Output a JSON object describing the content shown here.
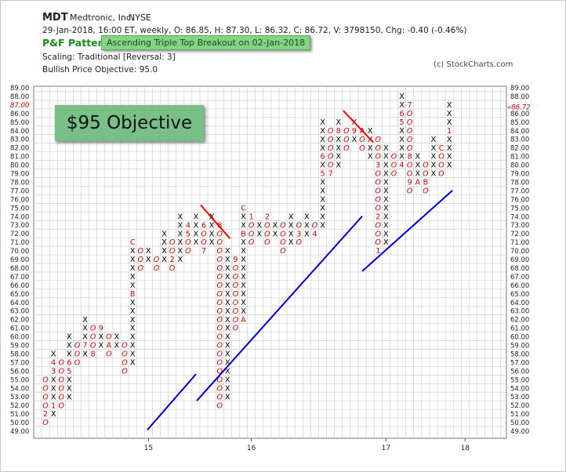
{
  "header": {
    "symbol": "MDT",
    "company": "Medtronic, Inc.",
    "exchange": "NYSE",
    "ohlc": "29-Jan-2018, 16:00 ET, weekly, O: 86.85, H: 87.30, L: 86.32, C: 86.72, V: 3798150, Chg: -0.40 (-0.46%)",
    "pnf_label": "P&F Pattern",
    "pattern": "Ascending Triple Top Breakout on 02-Jan-2018",
    "scaling": "Scaling: Traditional [Reversal: 3]",
    "objective": "Bullish Price Objective: 95.0",
    "copyright": "(c) StockCharts.com"
  },
  "annotation": "$95 Objective",
  "colors": {
    "x": "#000000",
    "o": "#cc0000",
    "trend": "#0000cc",
    "resistance": "#ff0000",
    "grid": "#c8c8c8"
  },
  "chart_data": {
    "type": "point-and-figure",
    "box_size": 1,
    "reversal": 3,
    "ylim": [
      49,
      89
    ],
    "last_price": 86.72,
    "last_price_label": "86.72",
    "x_ticks": [
      {
        "label": "15",
        "col": 13
      },
      {
        "label": "16",
        "col": 26
      },
      {
        "label": "17",
        "col": 43
      },
      {
        "label": "18",
        "col": 53
      }
    ],
    "columns": [
      {
        "type": "O",
        "high": 55,
        "low": 50,
        "marks": {
          "51": "2"
        }
      },
      {
        "type": "X",
        "high": 58,
        "low": 51,
        "marks": {
          "52": "1",
          "56": "3",
          "57": "4"
        }
      },
      {
        "type": "O",
        "high": 57,
        "low": 52,
        "marks": {}
      },
      {
        "type": "X",
        "high": 60,
        "low": 53,
        "marks": {
          "56": "5",
          "57": "6"
        }
      },
      {
        "type": "O",
        "high": 59,
        "low": 57,
        "marks": {}
      },
      {
        "type": "X",
        "high": 62,
        "low": 58,
        "marks": {
          "59": "7"
        }
      },
      {
        "type": "O",
        "high": 61,
        "low": 58,
        "marks": {
          "58": "8"
        }
      },
      {
        "type": "X",
        "high": 61,
        "low": 59,
        "marks": {
          "61": "9"
        }
      },
      {
        "type": "O",
        "high": 60,
        "low": 58,
        "marks": {
          "59": "A"
        }
      },
      {
        "type": "X",
        "high": 60,
        "low": 59,
        "marks": {}
      },
      {
        "type": "O",
        "high": 59,
        "low": 56,
        "marks": {}
      },
      {
        "type": "X",
        "high": 71,
        "low": 57,
        "marks": {
          "65": "B",
          "71": "C"
        }
      },
      {
        "type": "O",
        "high": 70,
        "low": 68,
        "marks": {}
      },
      {
        "type": "X",
        "high": 70,
        "low": 69,
        "marks": {}
      },
      {
        "type": "O",
        "high": 69,
        "low": 68,
        "marks": {
          "70": "1"
        }
      },
      {
        "type": "X",
        "high": 72,
        "low": 69,
        "marks": {}
      },
      {
        "type": "O",
        "high": 71,
        "low": 68,
        "marks": {
          "69": "2"
        }
      },
      {
        "type": "X",
        "high": 74,
        "low": 69,
        "marks": {}
      },
      {
        "type": "O",
        "high": 73,
        "low": 70,
        "marks": {
          "73": "4",
          "72": "5"
        }
      },
      {
        "type": "X",
        "high": 74,
        "low": 71,
        "marks": {}
      },
      {
        "type": "O",
        "high": 73,
        "low": 70,
        "marks": {
          "73": "6",
          "70": "7"
        }
      },
      {
        "type": "X",
        "high": 74,
        "low": 71,
        "marks": {}
      },
      {
        "type": "O",
        "high": 73,
        "low": 52,
        "marks": {
          "73": "8"
        }
      },
      {
        "type": "X",
        "high": 70,
        "low": 53,
        "marks": {}
      },
      {
        "type": "O",
        "high": 69,
        "low": 61,
        "marks": {
          "69": "9"
        }
      },
      {
        "type": "X",
        "high": 75,
        "low": 62,
        "marks": {
          "62": "A",
          "72": "B",
          "75": "C"
        }
      },
      {
        "type": "O",
        "high": 74,
        "low": 71,
        "marks": {
          "74": "1"
        }
      },
      {
        "type": "X",
        "high": 73,
        "low": 72,
        "marks": {}
      },
      {
        "type": "O",
        "high": 74,
        "low": 71,
        "marks": {
          "74": "2"
        }
      },
      {
        "type": "X",
        "high": 73,
        "low": 72,
        "marks": {}
      },
      {
        "type": "O",
        "high": 73,
        "low": 70,
        "marks": {}
      },
      {
        "type": "X",
        "high": 74,
        "low": 71,
        "marks": {}
      },
      {
        "type": "O",
        "high": 73,
        "low": 71,
        "marks": {
          "72": "3"
        }
      },
      {
        "type": "X",
        "high": 74,
        "low": 72,
        "marks": {}
      },
      {
        "type": "O",
        "high": 73,
        "low": 72,
        "marks": {
          "72": "4"
        }
      },
      {
        "type": "X",
        "high": 85,
        "low": 73,
        "marks": {
          "79": "5",
          "81": "6"
        }
      },
      {
        "type": "O",
        "high": 84,
        "low": 79,
        "marks": {
          "79": "7"
        }
      },
      {
        "type": "X",
        "high": 85,
        "low": 80,
        "marks": {
          "84": "8"
        }
      },
      {
        "type": "O",
        "high": 84,
        "low": 82,
        "marks": {}
      },
      {
        "type": "X",
        "high": 85,
        "low": 83,
        "marks": {
          "84": "9"
        }
      },
      {
        "type": "O",
        "high": 84,
        "low": 82,
        "marks": {
          "84": "A"
        }
      },
      {
        "type": "X",
        "high": 84,
        "low": 81,
        "marks": {
          "80": "B"
        }
      },
      {
        "type": "O",
        "high": 83,
        "low": 70,
        "marks": {
          "70": "1",
          "74": "2",
          "80": "3"
        }
      },
      {
        "type": "X",
        "high": 82,
        "low": 71,
        "marks": {}
      },
      {
        "type": "O",
        "high": 81,
        "low": 79,
        "marks": {}
      },
      {
        "type": "X",
        "high": 88,
        "low": 80,
        "marks": {
          "80": "4",
          "85": "5",
          "86": "6"
        }
      },
      {
        "type": "O",
        "high": 87,
        "low": 77,
        "marks": {
          "87": "7",
          "81": "8",
          "78": "9"
        }
      },
      {
        "type": "X",
        "high": 81,
        "low": 78,
        "marks": {
          "78": "A"
        }
      },
      {
        "type": "O",
        "high": 80,
        "low": 77,
        "marks": {
          "78": "B"
        }
      },
      {
        "type": "X",
        "high": 83,
        "low": 79,
        "marks": {}
      },
      {
        "type": "O",
        "high": 82,
        "low": 79,
        "marks": {
          "82": "C"
        }
      },
      {
        "type": "X",
        "high": 87,
        "low": 80,
        "marks": {
          "84": "1"
        }
      }
    ],
    "trendlines": [
      {
        "kind": "support",
        "x1": 12.85,
        "y1": 49.1,
        "x2": 19.0,
        "y2": 55.6
      },
      {
        "kind": "support",
        "x1": 19.1,
        "y1": 52.5,
        "x2": 40.0,
        "y2": 74.0
      },
      {
        "kind": "support",
        "x1": 40.0,
        "y1": 67.6,
        "x2": 51.4,
        "y2": 77.0
      },
      {
        "kind": "resistance",
        "x1": 19.6,
        "y1": 75.3,
        "x2": 23.3,
        "y2": 71.4
      },
      {
        "kind": "resistance",
        "x1": 37.6,
        "y1": 86.3,
        "x2": 41.4,
        "y2": 82.6
      }
    ]
  }
}
